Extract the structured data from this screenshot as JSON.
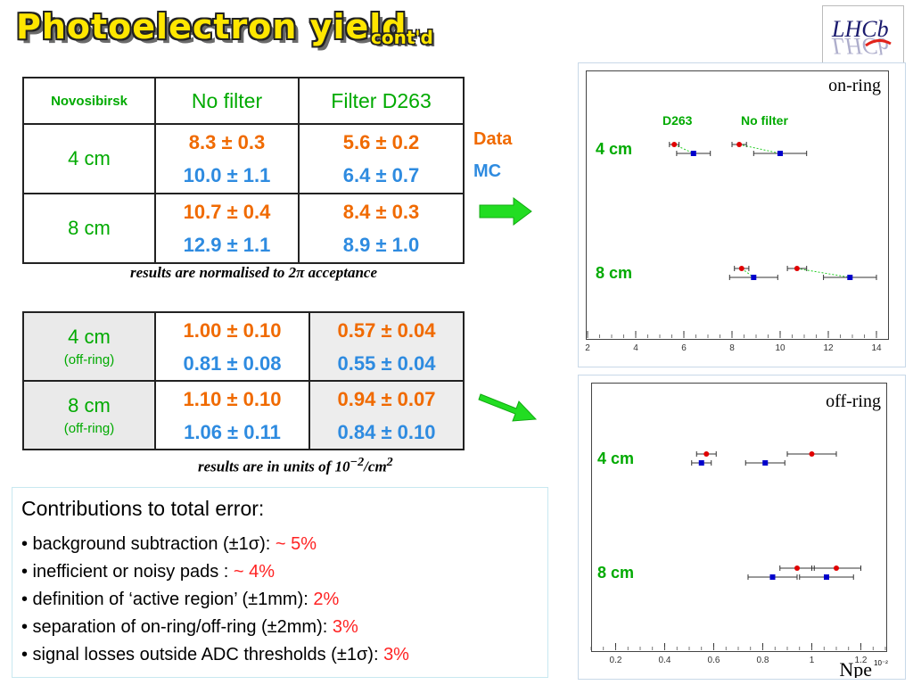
{
  "title": {
    "main": "Photoelectron  yield",
    "suffix": "cont'd"
  },
  "logo": {
    "text": "LHCb"
  },
  "table1": {
    "header": {
      "corner": "Novosibirsk",
      "col1": "No filter",
      "col2": "Filter D263"
    },
    "rows": [
      {
        "label": "4 cm",
        "data_col1": "8.3 ± 0.3",
        "mc_col1": "10.0 ± 1.1",
        "data_col2": "5.6 ± 0.2",
        "mc_col2": "6.4 ± 0.7"
      },
      {
        "label": "8 cm",
        "data_col1": "10.7 ± 0.4",
        "mc_col1": "12.9 ± 1.1",
        "data_col2": "8.4 ± 0.3",
        "mc_col2": "8.9 ± 1.0"
      }
    ],
    "note": "results are normalised to 2π acceptance"
  },
  "legend": {
    "data": "Data",
    "mc": "MC"
  },
  "table2": {
    "rows": [
      {
        "label": "4 cm",
        "sub": "(off-ring)",
        "data_col1": "1.00 ± 0.10",
        "mc_col1": "0.81 ± 0.08",
        "data_col2": "0.57 ± 0.04",
        "mc_col2": "0.55 ± 0.04"
      },
      {
        "label": "8 cm",
        "sub": "(off-ring)",
        "data_col1": "1.10 ± 0.10",
        "mc_col1": "1.06 ± 0.11",
        "data_col2": "0.94 ± 0.07",
        "mc_col2": "0.84 ± 0.10"
      }
    ],
    "note_prefix": "results are in units of  10",
    "note_exp": "−2",
    "note_suffix": "/cm",
    "note_exp2": "2"
  },
  "contributions": {
    "heading": "Contributions to total error:",
    "items": [
      {
        "text": "• background subtraction (±1σ): ",
        "value": "~ 5%"
      },
      {
        "text": "• inefficient or noisy pads :  ",
        "value": "~ 4%"
      },
      {
        "text": "• definition of  ‘active region’ (±1mm):  ",
        "value": "2%"
      },
      {
        "text": "• separation of on-ring/off-ring (±2mm):  ",
        "value": "3%"
      },
      {
        "text": "• signal losses outside ADC thresholds (±1σ):  ",
        "value": "3%"
      }
    ]
  },
  "plot_on": {
    "label": "on-ring",
    "legend_d263": "D263",
    "legend_nofilter": "No filter",
    "row_labels": [
      "4 cm",
      "8 cm"
    ],
    "ticks": [
      "2",
      "4",
      "6",
      "8",
      "10",
      "12",
      "14"
    ]
  },
  "plot_off": {
    "label": "off-ring",
    "row_labels": [
      "4 cm",
      "8 cm"
    ],
    "ticks": [
      "0.2",
      "0.4",
      "0.6",
      "0.8",
      "1",
      "1.2"
    ],
    "axis_title": "Npe",
    "axis_exp": "10⁻²"
  },
  "chart_data": [
    {
      "type": "scatter",
      "title": "on-ring",
      "xlim": [
        2,
        14
      ],
      "series": [
        {
          "name": "D263",
          "points": [
            {
              "row": "4 cm",
              "data": [
                5.6,
                0.2
              ],
              "mc": [
                6.4,
                0.7
              ]
            },
            {
              "row": "8 cm",
              "data": [
                8.4,
                0.3
              ],
              "mc": [
                8.9,
                1.0
              ]
            }
          ]
        },
        {
          "name": "No filter",
          "points": [
            {
              "row": "4 cm",
              "data": [
                8.3,
                0.3
              ],
              "mc": [
                10.0,
                1.1
              ]
            },
            {
              "row": "8 cm",
              "data": [
                10.7,
                0.4
              ],
              "mc": [
                12.9,
                1.1
              ]
            }
          ]
        }
      ],
      "colors": {
        "data": "#e00000",
        "mc": "#0000cc"
      }
    },
    {
      "type": "scatter",
      "title": "off-ring",
      "xlabel": "Npe",
      "xlim": [
        0.1,
        1.3
      ],
      "series": [
        {
          "points": [
            {
              "row": "4 cm",
              "data": [
                0.57,
                0.04
              ],
              "mc": [
                0.55,
                0.04
              ]
            },
            {
              "row": "8 cm",
              "data": [
                0.94,
                0.07
              ],
              "mc": [
                0.84,
                0.1
              ]
            }
          ]
        },
        {
          "points": [
            {
              "row": "4 cm",
              "data": [
                1.0,
                0.1
              ],
              "mc": [
                0.81,
                0.08
              ]
            },
            {
              "row": "8 cm",
              "data": [
                1.1,
                0.1
              ],
              "mc": [
                1.06,
                0.11
              ]
            }
          ]
        }
      ],
      "colors": {
        "data": "#e00000",
        "mc": "#0000cc"
      }
    }
  ]
}
